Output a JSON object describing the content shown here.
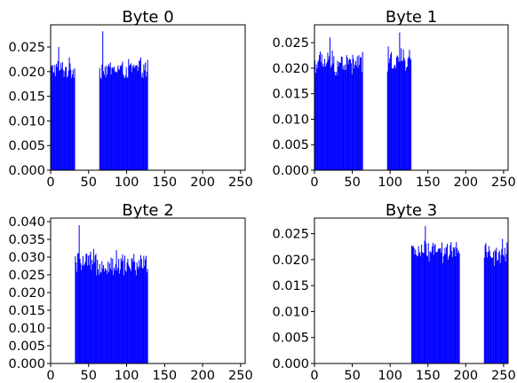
{
  "chart_data": [
    {
      "type": "bar",
      "title": "Byte 0",
      "xlim": [
        0,
        256
      ],
      "ylim": [
        0,
        0.0295
      ],
      "xticks": [
        "0",
        "50",
        "100",
        "150",
        "200",
        "250"
      ],
      "yticks": [
        "0.000",
        "0.005",
        "0.010",
        "0.015",
        "0.020",
        "0.025"
      ],
      "bar_color": "#0000ff",
      "segments": [
        {
          "x_start": 0,
          "x_end": 32,
          "level": 0.0205,
          "spread": 0.0025,
          "peak_x": 10,
          "peak": 0.025
        },
        {
          "x_start": 64,
          "x_end": 128,
          "level": 0.0205,
          "spread": 0.0025,
          "peak_x": 68,
          "peak": 0.0282
        }
      ]
    },
    {
      "type": "bar",
      "title": "Byte 1",
      "xlim": [
        0,
        256
      ],
      "ylim": [
        0,
        0.0285
      ],
      "xticks": [
        "0",
        "50",
        "100",
        "150",
        "200",
        "250"
      ],
      "yticks": [
        "0.000",
        "0.005",
        "0.010",
        "0.015",
        "0.020",
        "0.025"
      ],
      "bar_color": "#0000ff",
      "segments": [
        {
          "x_start": 0,
          "x_end": 64,
          "level": 0.021,
          "spread": 0.003,
          "peak_x": 20,
          "peak": 0.026
        },
        {
          "x_start": 96,
          "x_end": 128,
          "level": 0.0215,
          "spread": 0.003,
          "peak_x": 112,
          "peak": 0.027
        }
      ]
    },
    {
      "type": "bar",
      "title": "Byte 2",
      "xlim": [
        0,
        256
      ],
      "ylim": [
        0,
        0.041
      ],
      "xticks": [
        "0",
        "50",
        "100",
        "150",
        "200",
        "250"
      ],
      "yticks": [
        "0.000",
        "0.005",
        "0.010",
        "0.015",
        "0.020",
        "0.025",
        "0.030",
        "0.035",
        "0.040"
      ],
      "bar_color": "#0000ff",
      "segments": [
        {
          "x_start": 32,
          "x_end": 128,
          "level": 0.028,
          "spread": 0.0045,
          "peak_x": 37,
          "peak": 0.039
        }
      ]
    },
    {
      "type": "bar",
      "title": "Byte 3",
      "xlim": [
        0,
        256
      ],
      "ylim": [
        0,
        0.028
      ],
      "xticks": [
        "0",
        "50",
        "100",
        "150",
        "200",
        "250"
      ],
      "yticks": [
        "0.000",
        "0.005",
        "0.010",
        "0.015",
        "0.020",
        "0.025"
      ],
      "bar_color": "#0000ff",
      "segments": [
        {
          "x_start": 128,
          "x_end": 192,
          "level": 0.0215,
          "spread": 0.0025,
          "peak_x": 146,
          "peak": 0.0265
        },
        {
          "x_start": 224,
          "x_end": 256,
          "level": 0.021,
          "spread": 0.0025,
          "peak_x": 248,
          "peak": 0.024
        }
      ]
    }
  ]
}
